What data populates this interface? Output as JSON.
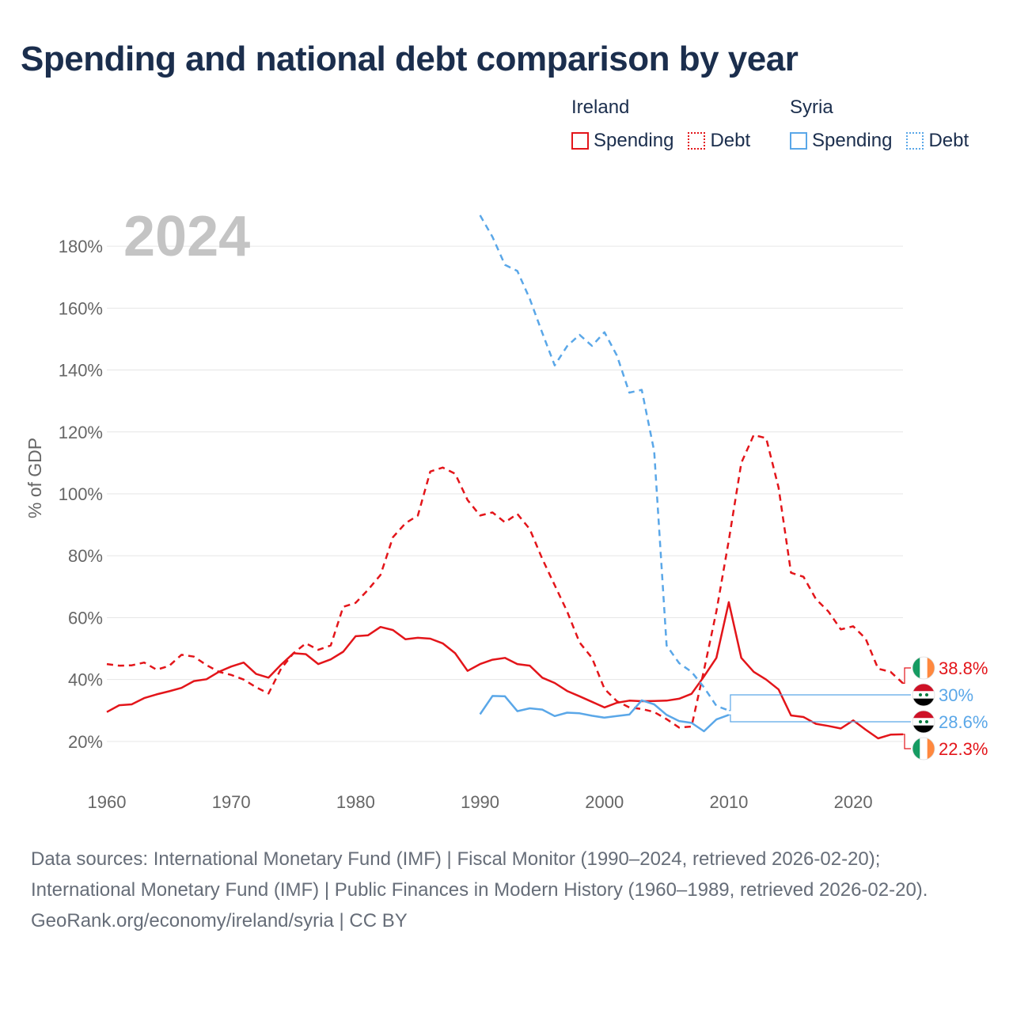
{
  "title": "Spending and national debt comparison by year",
  "legend": {
    "groups": [
      {
        "country": "Ireland",
        "items": [
          {
            "label": "Spending",
            "color": "#e3151a",
            "style": "solid"
          },
          {
            "label": "Debt",
            "color": "#e3151a",
            "style": "dotted"
          }
        ]
      },
      {
        "country": "Syria",
        "items": [
          {
            "label": "Spending",
            "color": "#5aa7e8",
            "style": "solid"
          },
          {
            "label": "Debt",
            "color": "#5aa7e8",
            "style": "dotted"
          }
        ]
      }
    ]
  },
  "footer": {
    "sources": "Data sources: International Monetary Fund (IMF) | Fiscal Monitor (1990–2024, retrieved 2026-02-20); International Monetary Fund (IMF) | Public Finances in Modern History (1960–1989, retrieved 2026-02-20).",
    "credit": "GeoRank.org/economy/ireland/syria | CC BY"
  },
  "chart_data": {
    "type": "line",
    "title": "Spending and national debt comparison by year",
    "year_label": "2024",
    "ylabel": "% of GDP",
    "xlabel": "",
    "xlim": [
      1960,
      2024
    ],
    "ylim": [
      10,
      190
    ],
    "x_ticks": [
      1960,
      1970,
      1980,
      1990,
      2000,
      2010,
      2020
    ],
    "x_tick_labels": [
      "1960",
      "1970",
      "1980",
      "1990",
      "2000",
      "2010",
      "2020"
    ],
    "y_ticks": [
      20,
      40,
      60,
      80,
      100,
      120,
      140,
      160,
      180
    ],
    "y_tick_labels": [
      "20%",
      "40%",
      "60%",
      "80%",
      "100%",
      "120%",
      "140%",
      "160%",
      "180%"
    ],
    "grid": true,
    "series": [
      {
        "name": "Ireland Spending",
        "country": "Ireland",
        "color": "#e3151a",
        "dash": "none",
        "x": [
          1960,
          1961,
          1962,
          1963,
          1964,
          1965,
          1966,
          1967,
          1968,
          1969,
          1970,
          1971,
          1972,
          1973,
          1974,
          1975,
          1976,
          1977,
          1978,
          1979,
          1980,
          1981,
          1982,
          1983,
          1984,
          1985,
          1986,
          1987,
          1988,
          1989,
          1990,
          1991,
          1992,
          1993,
          1994,
          1995,
          1996,
          1997,
          1998,
          1999,
          2000,
          2001,
          2002,
          2003,
          2004,
          2005,
          2006,
          2007,
          2008,
          2009,
          2010,
          2011,
          2012,
          2013,
          2014,
          2015,
          2016,
          2017,
          2018,
          2019,
          2020,
          2021,
          2022,
          2023,
          2024
        ],
        "values": [
          29.5,
          31.7,
          32,
          34,
          35.2,
          36.2,
          37.3,
          39.5,
          40.1,
          42.5,
          44.2,
          45.5,
          41.8,
          40.6,
          44.8,
          48.5,
          48.2,
          45,
          46.5,
          49,
          54,
          54.3,
          57,
          56,
          53,
          53.5,
          53.2,
          51.7,
          48.5,
          42.8,
          45,
          46.4,
          47,
          45,
          44.5,
          40.6,
          38.9,
          36.3,
          34.6,
          32.8,
          31,
          32.5,
          33.2,
          33,
          33.1,
          33.2,
          33.8,
          35.4,
          41,
          47,
          65,
          47,
          42.5,
          40,
          36.8,
          28.4,
          27.9,
          25.7,
          25,
          24.2,
          26.8,
          23.8,
          21,
          22.2,
          22.3
        ],
        "end_label": "22.3%",
        "flag": "ireland"
      },
      {
        "name": "Ireland Debt",
        "country": "Ireland",
        "color": "#e3151a",
        "dash": "dashed",
        "x": [
          1960,
          1961,
          1962,
          1963,
          1964,
          1965,
          1966,
          1967,
          1968,
          1969,
          1970,
          1971,
          1972,
          1973,
          1974,
          1975,
          1976,
          1977,
          1978,
          1979,
          1980,
          1981,
          1982,
          1983,
          1984,
          1985,
          1986,
          1987,
          1988,
          1989,
          1990,
          1991,
          1992,
          1993,
          1994,
          1995,
          1996,
          1997,
          1998,
          1999,
          2000,
          2001,
          2002,
          2003,
          2004,
          2005,
          2006,
          2007,
          2008,
          2009,
          2010,
          2011,
          2012,
          2013,
          2014,
          2015,
          2016,
          2017,
          2018,
          2019,
          2020,
          2021,
          2022,
          2023,
          2024
        ],
        "values": [
          45,
          44.5,
          44.6,
          45.5,
          43.2,
          44.4,
          48,
          47.4,
          44.7,
          42.5,
          41.5,
          40,
          37.5,
          35.5,
          43.5,
          48.5,
          51.7,
          49.6,
          51,
          63.5,
          64.8,
          69,
          73.8,
          86,
          90.5,
          93,
          107.2,
          108.5,
          106.5,
          98,
          93,
          94,
          90.8,
          93.5,
          88.6,
          79,
          70.5,
          62,
          52,
          47,
          37,
          33,
          31,
          30.5,
          29.5,
          27.2,
          24.5,
          24.8,
          43,
          62,
          85,
          110,
          119,
          118,
          102,
          74.5,
          73.2,
          66,
          62,
          56.2,
          57.2,
          53.2,
          43.5,
          42.5,
          38.8
        ],
        "end_label": "38.8%",
        "flag": "ireland"
      },
      {
        "name": "Syria Spending",
        "country": "Syria",
        "color": "#5aa7e8",
        "dash": "none",
        "x": [
          1990,
          1991,
          1992,
          1993,
          1994,
          1995,
          1996,
          1997,
          1998,
          1999,
          2000,
          2001,
          2002,
          2003,
          2004,
          2005,
          2006,
          2007,
          2008,
          2009,
          2010
        ],
        "values": [
          28.8,
          34.7,
          34.6,
          29.8,
          30.7,
          30.3,
          28.2,
          29.3,
          29.1,
          28.3,
          27.7,
          28.2,
          28.7,
          33.3,
          32,
          28.6,
          26.6,
          26,
          23.3,
          27.1,
          28.6
        ],
        "end_label": "28.6%",
        "flag": "syria"
      },
      {
        "name": "Syria Debt",
        "country": "Syria",
        "color": "#5aa7e8",
        "dash": "dashed",
        "x": [
          1990,
          1991,
          1992,
          1993,
          1994,
          1995,
          1996,
          1997,
          1998,
          1999,
          2000,
          2001,
          2002,
          2003,
          2004,
          2005,
          2006,
          2007,
          2008,
          2009,
          2010
        ],
        "values": [
          190,
          183,
          174,
          172,
          163,
          152,
          141.5,
          147.7,
          151.4,
          147.8,
          152.2,
          144.7,
          132.7,
          133.6,
          113.8,
          51,
          45.3,
          42.5,
          37.5,
          31.5,
          30
        ],
        "end_label": "30%",
        "flag": "syria"
      }
    ]
  }
}
